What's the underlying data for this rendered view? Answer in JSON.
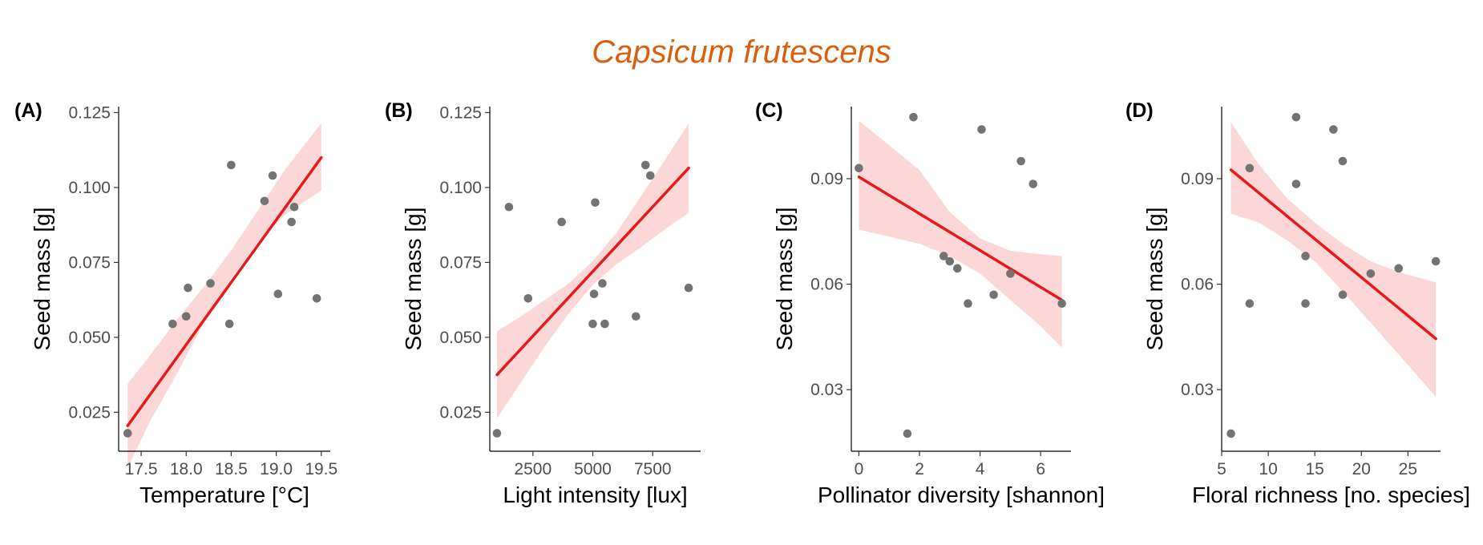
{
  "figure": {
    "title": "Capsicum frutescens"
  },
  "chart_data": [
    {
      "type": "scatter",
      "panel_label": "(A)",
      "xlabel": "Temperature [°C]",
      "ylabel": "Seed mass [g]",
      "xlim": [
        17.25,
        19.6
      ],
      "ylim": [
        0.012,
        0.127
      ],
      "xticks": [
        17.5,
        18.0,
        18.5,
        19.0,
        19.5
      ],
      "xtick_labels": [
        "17.5",
        "18.0",
        "18.5",
        "19.0",
        "19.5"
      ],
      "yticks": [
        0.025,
        0.05,
        0.075,
        0.1,
        0.125
      ],
      "ytick_labels": [
        "0.025",
        "0.050",
        "0.075",
        "0.100",
        "0.125"
      ],
      "points": [
        [
          17.35,
          0.018
        ],
        [
          17.85,
          0.0545
        ],
        [
          18.0,
          0.057
        ],
        [
          18.02,
          0.0665
        ],
        [
          18.27,
          0.068
        ],
        [
          18.48,
          0.0545
        ],
        [
          18.5,
          0.1075
        ],
        [
          18.87,
          0.0955
        ],
        [
          18.96,
          0.104
        ],
        [
          19.02,
          0.0645
        ],
        [
          19.17,
          0.0885
        ],
        [
          19.2,
          0.0935
        ],
        [
          19.45,
          0.063
        ]
      ],
      "fit": {
        "x": [
          17.35,
          19.5
        ],
        "y": [
          0.0205,
          0.11
        ]
      },
      "ci": {
        "x": [
          17.35,
          17.6,
          17.9,
          18.2,
          18.5,
          18.8,
          19.1,
          19.5
        ],
        "lower": [
          0.0065,
          0.022,
          0.038,
          0.055,
          0.0695,
          0.082,
          0.091,
          0.099
        ],
        "upper": [
          0.0345,
          0.044,
          0.056,
          0.067,
          0.079,
          0.0925,
          0.106,
          0.1215
        ]
      },
      "colors": {
        "points": "#737373",
        "line": "#e41a1c",
        "ci": "#fbd7d8"
      }
    },
    {
      "type": "scatter",
      "panel_label": "(B)",
      "xlabel": "Light intensity [lux]",
      "ylabel": "Seed mass [g]",
      "xlim": [
        700,
        9500
      ],
      "ylim": [
        0.012,
        0.127
      ],
      "xticks": [
        2500,
        5000,
        7500
      ],
      "xtick_labels": [
        "2500",
        "5000",
        "7500"
      ],
      "yticks": [
        0.025,
        0.05,
        0.075,
        0.1,
        0.125
      ],
      "ytick_labels": [
        "0.025",
        "0.050",
        "0.075",
        "0.100",
        "0.125"
      ],
      "points": [
        [
          1000,
          0.018
        ],
        [
          1500,
          0.0935
        ],
        [
          2300,
          0.063
        ],
        [
          3700,
          0.0885
        ],
        [
          5000,
          0.0545
        ],
        [
          5050,
          0.0645
        ],
        [
          5100,
          0.095
        ],
        [
          5400,
          0.068
        ],
        [
          5500,
          0.0545
        ],
        [
          6800,
          0.057
        ],
        [
          7200,
          0.1075
        ],
        [
          7400,
          0.104
        ],
        [
          9000,
          0.0665
        ]
      ],
      "fit": {
        "x": [
          1000,
          9000
        ],
        "y": [
          0.0375,
          0.1065
        ]
      },
      "ci": {
        "x": [
          1000,
          2000,
          3000,
          4000,
          5000,
          6000,
          7000,
          8000,
          9000
        ],
        "lower": [
          0.023,
          0.035,
          0.047,
          0.058,
          0.0675,
          0.0745,
          0.08,
          0.086,
          0.0915
        ],
        "upper": [
          0.052,
          0.057,
          0.0625,
          0.068,
          0.0755,
          0.085,
          0.097,
          0.109,
          0.1215
        ]
      },
      "colors": {
        "points": "#737373",
        "line": "#e41a1c",
        "ci": "#fbd7d8"
      }
    },
    {
      "type": "scatter",
      "panel_label": "(C)",
      "xlabel": "Pollinator diversity [shannon]",
      "ylabel": "Seed mass [g]",
      "xlim": [
        -0.25,
        7.0
      ],
      "ylim": [
        0.0125,
        0.1105
      ],
      "xticks": [
        0,
        2,
        4,
        6
      ],
      "xtick_labels": [
        "0",
        "2",
        "4",
        "6"
      ],
      "yticks": [
        0.03,
        0.06,
        0.09
      ],
      "ytick_labels": [
        "0.03",
        "0.06",
        "0.09"
      ],
      "points": [
        [
          0.0,
          0.093
        ],
        [
          1.6,
          0.0175
        ],
        [
          1.8,
          0.1075
        ],
        [
          2.8,
          0.068
        ],
        [
          3.0,
          0.0665
        ],
        [
          3.25,
          0.0645
        ],
        [
          3.6,
          0.0545
        ],
        [
          4.05,
          0.104
        ],
        [
          4.45,
          0.057
        ],
        [
          5.0,
          0.063
        ],
        [
          5.35,
          0.095
        ],
        [
          5.75,
          0.0885
        ],
        [
          6.7,
          0.0545
        ]
      ],
      "fit": {
        "x": [
          0.0,
          6.7
        ],
        "y": [
          0.0905,
          0.0555
        ]
      },
      "ci": {
        "x": [
          0.0,
          1.0,
          2.0,
          3.0,
          4.0,
          5.0,
          6.0,
          6.7
        ],
        "lower": [
          0.0755,
          0.0735,
          0.0715,
          0.068,
          0.063,
          0.0555,
          0.048,
          0.042
        ],
        "upper": [
          0.1065,
          0.0995,
          0.0925,
          0.0805,
          0.073,
          0.0695,
          0.0685,
          0.068
        ]
      },
      "colors": {
        "points": "#737373",
        "line": "#e41a1c",
        "ci": "#fbd7d8"
      }
    },
    {
      "type": "scatter",
      "panel_label": "(D)",
      "xlabel": "Floral richness [no. species]",
      "ylabel": "Seed mass [g]",
      "xlim": [
        5.0,
        28.5
      ],
      "ylim": [
        0.0125,
        0.1105
      ],
      "xticks": [
        5,
        10,
        15,
        20,
        25
      ],
      "xtick_labels": [
        "5",
        "10",
        "15",
        "20",
        "25"
      ],
      "yticks": [
        0.03,
        0.06,
        0.09
      ],
      "ytick_labels": [
        "0.03",
        "0.06",
        "0.09"
      ],
      "points": [
        [
          6,
          0.0175
        ],
        [
          8,
          0.093
        ],
        [
          8,
          0.0545
        ],
        [
          13,
          0.1075
        ],
        [
          13,
          0.0885
        ],
        [
          14,
          0.068
        ],
        [
          14,
          0.0545
        ],
        [
          17,
          0.104
        ],
        [
          18,
          0.095
        ],
        [
          18,
          0.057
        ],
        [
          21,
          0.063
        ],
        [
          24,
          0.0645
        ],
        [
          28,
          0.0665
        ]
      ],
      "fit": {
        "x": [
          6,
          28
        ],
        "y": [
          0.0925,
          0.0445
        ]
      },
      "ci": {
        "x": [
          6,
          9,
          12,
          15,
          18,
          21,
          24,
          28
        ],
        "lower": [
          0.08,
          0.0775,
          0.0725,
          0.0665,
          0.058,
          0.049,
          0.04,
          0.028
        ],
        "upper": [
          0.106,
          0.094,
          0.0845,
          0.0775,
          0.0715,
          0.0665,
          0.0635,
          0.0605
        ]
      },
      "colors": {
        "points": "#737373",
        "line": "#e41a1c",
        "ci": "#fbd7d8"
      }
    }
  ]
}
